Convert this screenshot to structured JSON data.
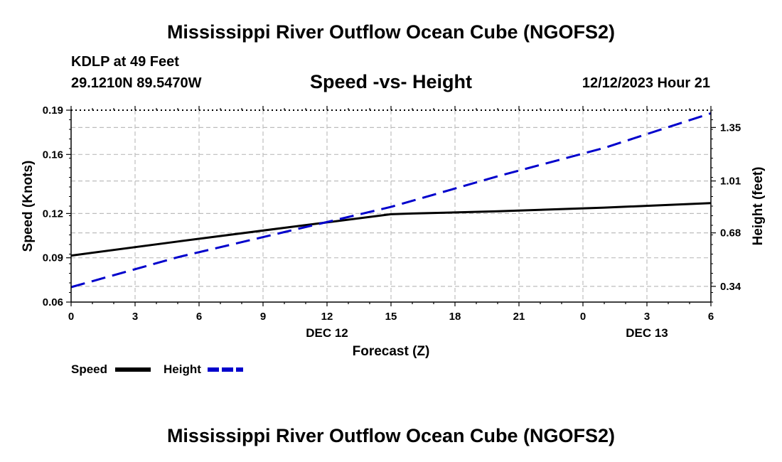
{
  "header": {
    "title": "Mississippi River Outflow Ocean Cube (NGOFS2)",
    "station": "KDLP at 49 Feet",
    "coords": "29.1210N  89.5470W",
    "subtitle": "Speed -vs- Height",
    "datetime": "12/12/2023 Hour 21"
  },
  "footer": {
    "title": "Mississippi River Outflow Ocean Cube (NGOFS2)"
  },
  "chart_data": {
    "type": "line",
    "title": "Speed -vs- Height",
    "xlabel": "Forecast (Z)",
    "ylabel": "Speed (Knots)",
    "y2label": "Height (feet)",
    "x_hours": [
      0,
      3,
      6,
      9,
      12,
      15,
      18,
      21,
      24,
      27,
      30
    ],
    "x_tick_labels": [
      "0",
      "3",
      "6",
      "9",
      "12",
      "15",
      "18",
      "21",
      "0",
      "3",
      "6"
    ],
    "date_labels": [
      {
        "hour": 12,
        "label": "DEC 12"
      },
      {
        "hour": 27,
        "label": "DEC 13"
      }
    ],
    "xlim": [
      0,
      30
    ],
    "ylim": [
      0.06,
      0.19
    ],
    "y_ticks": [
      0.06,
      0.09,
      0.12,
      0.16,
      0.19
    ],
    "y_tick_labels": [
      "0.06",
      "0.09",
      "0.12",
      "0.16",
      "0.19"
    ],
    "y2lim": [
      0.24,
      1.46
    ],
    "y2_ticks": [
      0.34,
      0.68,
      1.01,
      1.35
    ],
    "y2_tick_labels": [
      "0.34",
      "0.68",
      "1.01",
      "1.35"
    ],
    "grid": true,
    "legend_position": "bottom-left",
    "series": [
      {
        "name": "Speed",
        "axis": "left",
        "color": "#000000",
        "style": "solid",
        "x": [
          0,
          5,
          10,
          15,
          16,
          20,
          25,
          30
        ],
        "y": [
          0.0915,
          0.101,
          0.1103,
          0.1195,
          0.12,
          0.1215,
          0.124,
          0.127
        ]
      },
      {
        "name": "Height",
        "axis": "right",
        "color": "#0000cc",
        "style": "dashed",
        "x": [
          0,
          5,
          10,
          15,
          20,
          25,
          30
        ],
        "y": [
          0.335,
          0.525,
          0.685,
          0.845,
          1.04,
          1.22,
          1.44
        ]
      }
    ]
  }
}
